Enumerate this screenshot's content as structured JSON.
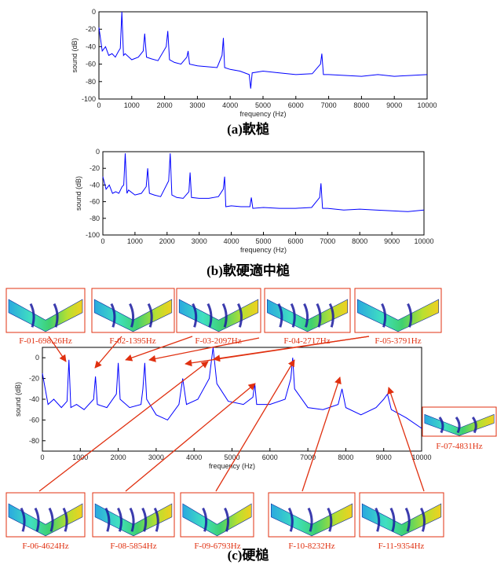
{
  "chart_data": [
    {
      "type": "line",
      "color": "#0000ff",
      "xlabel": "frequency (Hz)",
      "ylabel": "sound (dB)",
      "caption": "(a)軟槌",
      "xlim": [
        0,
        10000
      ],
      "xticks": [
        0,
        1000,
        2000,
        3000,
        4000,
        5000,
        6000,
        7000,
        8000,
        9000,
        10000
      ],
      "ylim": [
        -100,
        0
      ],
      "yticks": [
        -100,
        -80,
        -60,
        -40,
        -20,
        0
      ],
      "x": [
        0,
        100,
        200,
        300,
        400,
        500,
        600,
        650,
        698,
        750,
        800,
        1000,
        1200,
        1350,
        1395,
        1450,
        1600,
        1800,
        2050,
        2097,
        2150,
        2300,
        2500,
        2680,
        2717,
        2760,
        3000,
        3300,
        3600,
        3750,
        3791,
        3830,
        4000,
        4300,
        4580,
        4624,
        4670,
        5000,
        5500,
        6000,
        6500,
        6750,
        6793,
        6840,
        7000,
        7500,
        8000,
        8500,
        9000,
        9500,
        10000
      ],
      "values": [
        -18,
        -45,
        -40,
        -50,
        -48,
        -52,
        -45,
        -42,
        0,
        -50,
        -48,
        -55,
        -52,
        -45,
        -25,
        -52,
        -54,
        -56,
        -40,
        -22,
        -55,
        -58,
        -60,
        -52,
        -45,
        -60,
        -62,
        -63,
        -64,
        -50,
        -30,
        -64,
        -66,
        -68,
        -72,
        -88,
        -70,
        -68,
        -70,
        -72,
        -71,
        -60,
        -48,
        -72,
        -72,
        -73,
        -74,
        -72,
        -74,
        -73,
        -72
      ]
    },
    {
      "type": "line",
      "color": "#0000ff",
      "xlabel": "frequency (Hz)",
      "ylabel": "sound (dB)",
      "caption": "(b)軟硬適中槌",
      "xlim": [
        0,
        10000
      ],
      "xticks": [
        0,
        1000,
        2000,
        3000,
        4000,
        5000,
        6000,
        7000,
        8000,
        9000,
        10000
      ],
      "ylim": [
        -100,
        0
      ],
      "yticks": [
        -100,
        -80,
        -60,
        -40,
        -20,
        0
      ],
      "x": [
        0,
        100,
        200,
        300,
        400,
        500,
        600,
        650,
        698,
        750,
        800,
        1000,
        1200,
        1350,
        1395,
        1450,
        1600,
        1800,
        2050,
        2097,
        2150,
        2300,
        2500,
        2680,
        2717,
        2760,
        3000,
        3300,
        3600,
        3750,
        3791,
        3830,
        4000,
        4300,
        4580,
        4624,
        4670,
        5000,
        5500,
        6000,
        6500,
        6750,
        6793,
        6840,
        7000,
        7500,
        8000,
        8500,
        9000,
        9500,
        10000
      ],
      "values": [
        -30,
        -45,
        -40,
        -50,
        -48,
        -50,
        -42,
        -40,
        -2,
        -50,
        -46,
        -52,
        -50,
        -42,
        -20,
        -50,
        -52,
        -54,
        -35,
        -2,
        -52,
        -55,
        -56,
        -48,
        -25,
        -55,
        -56,
        -56,
        -54,
        -45,
        -30,
        -66,
        -65,
        -66,
        -66,
        -55,
        -68,
        -67,
        -68,
        -68,
        -67,
        -55,
        -38,
        -68,
        -68,
        -70,
        -69,
        -70,
        -71,
        -72,
        -70
      ]
    },
    {
      "type": "line",
      "color": "#0000ff",
      "xlabel": "frequency (Hz)",
      "ylabel": "sound (dB)",
      "caption": "(c)硬槌",
      "xlim": [
        0,
        10000
      ],
      "xticks": [
        0,
        1000,
        2000,
        3000,
        4000,
        5000,
        6000,
        7000,
        8000,
        9000,
        10000
      ],
      "ylim": [
        -90,
        10
      ],
      "yticks": [
        -80,
        -60,
        -40,
        -20,
        0
      ],
      "x": [
        0,
        150,
        300,
        500,
        650,
        700,
        750,
        900,
        1100,
        1350,
        1400,
        1450,
        1700,
        1950,
        2000,
        2050,
        2300,
        2600,
        2650,
        2700,
        2750,
        3000,
        3300,
        3600,
        3700,
        3800,
        4100,
        4400,
        4500,
        4600,
        4900,
        5300,
        5550,
        5600,
        5650,
        6000,
        6400,
        6550,
        6600,
        6650,
        7000,
        7400,
        7800,
        7900,
        8000,
        8400,
        8800,
        9000,
        9100,
        9200,
        9600,
        10000
      ],
      "values": [
        -15,
        -45,
        -40,
        -48,
        -42,
        -2,
        -48,
        -45,
        -50,
        -40,
        -18,
        -45,
        -48,
        -35,
        -5,
        -40,
        -48,
        -45,
        -30,
        -5,
        -40,
        -55,
        -60,
        -45,
        -20,
        -45,
        -40,
        -20,
        10,
        -25,
        -42,
        -45,
        -38,
        -25,
        -45,
        -45,
        -40,
        -20,
        0,
        -30,
        -48,
        -50,
        -45,
        -30,
        -48,
        -55,
        -48,
        -40,
        -35,
        -50,
        -58,
        -68
      ],
      "mode_labels": [
        "F-01-698.26Hz",
        "F-02-1395Hz",
        "F-03-2097Hz",
        "F-04-2717Hz",
        "F-05-3791Hz",
        "F-07-4831Hz",
        "F-06-4624Hz",
        "F-08-5854Hz",
        "F-09-6793Hz",
        "F-10-8232Hz",
        "F-11-9354Hz"
      ]
    }
  ]
}
